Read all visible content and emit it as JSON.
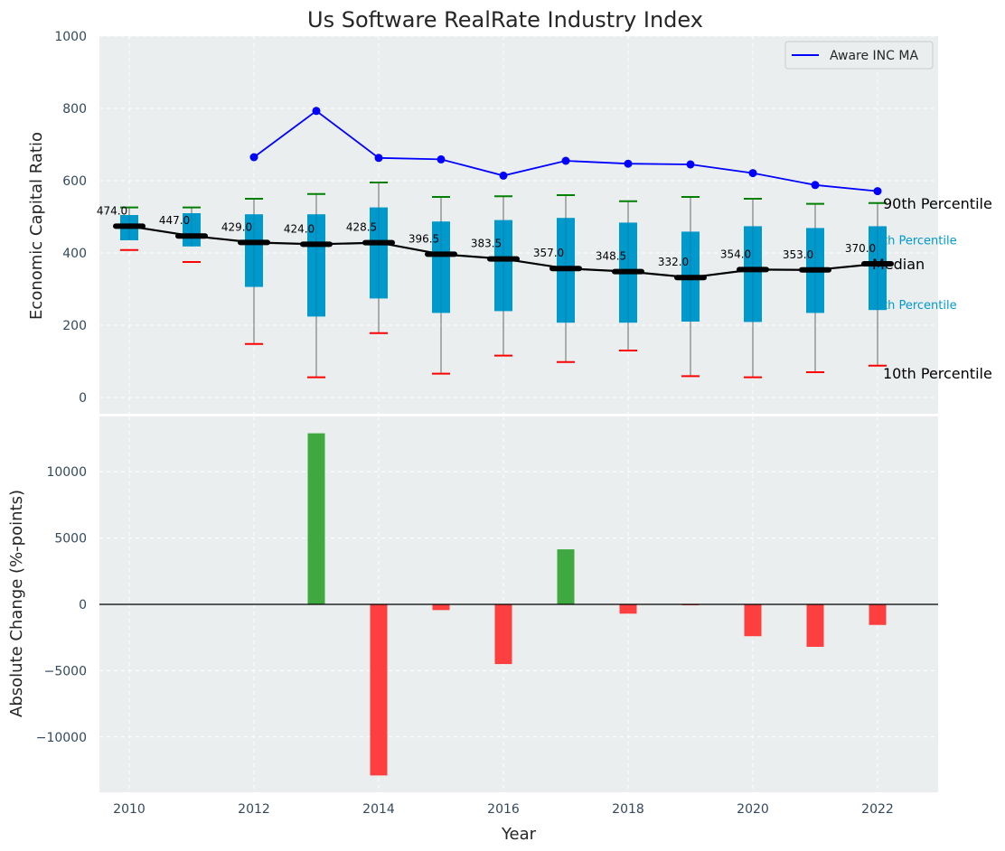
{
  "chart_data": [
    {
      "type": "box",
      "title": "Us Software RealRate Industry Index",
      "xlabel": "",
      "ylabel": "Economic Capital Ratio",
      "ylim": [
        -45,
        1000
      ],
      "yticks": [
        0,
        200,
        400,
        600,
        800,
        1000
      ],
      "grid": true,
      "legend": {
        "position": "top-right",
        "entries": [
          "Aware INC MA"
        ]
      },
      "years": [
        2010,
        2011,
        2012,
        2013,
        2014,
        2015,
        2016,
        2017,
        2018,
        2019,
        2020,
        2021,
        2022
      ],
      "series": [
        {
          "name": "Median",
          "values": [
            474.0,
            447.0,
            429.0,
            424.0,
            428.5,
            396.5,
            383.5,
            357.0,
            348.5,
            332.0,
            354.0,
            353.0,
            370.0
          ]
        },
        {
          "name": "Aware INC MA",
          "x": [
            2012,
            2013,
            2014,
            2015,
            2016,
            2017,
            2018,
            2019,
            2020,
            2021,
            2022
          ],
          "values": [
            665,
            793,
            663,
            659,
            614,
            655,
            647,
            645,
            621,
            588,
            571
          ]
        }
      ],
      "median_labels": [
        "474.0",
        "447.0",
        "429.0",
        "424.0",
        "428.5",
        "396.5",
        "383.5",
        "357.0",
        "348.5",
        "332.0",
        "354.0",
        "353.0",
        "370.0"
      ],
      "boxes": {
        "q75": [
          505,
          510,
          507,
          507,
          526,
          487,
          491,
          497,
          484,
          459,
          474,
          469,
          474
        ],
        "q25": [
          435,
          418,
          306,
          224,
          274,
          234,
          239,
          207,
          207,
          210,
          209,
          234,
          242
        ],
        "p90": [
          526,
          526,
          550,
          563,
          595,
          555,
          557,
          560,
          543,
          555,
          550,
          536,
          538
        ],
        "p10": [
          408,
          375,
          148,
          56,
          178,
          66,
          116,
          98,
          130,
          59,
          56,
          70,
          88
        ],
        "whisker_high": [
          526,
          526,
          550,
          563,
          595,
          555,
          557,
          560,
          543,
          555,
          550,
          536,
          538
        ],
        "whisker_low": [
          435,
          418,
          148,
          56,
          178,
          66,
          116,
          98,
          130,
          59,
          56,
          70,
          88
        ]
      },
      "side_labels": {
        "p90": "90th Percentile",
        "p75": "th Percentile",
        "median": "Median",
        "p25": "th Percentile",
        "p10": "10th Percentile"
      },
      "colors": {
        "box": "#0099cc",
        "median_line": "#000000",
        "company_line": "#0000ff",
        "p90_marker": "#008000",
        "p10_marker": "#ff0000",
        "whisker": "#808080",
        "background": "#eaeeee"
      }
    },
    {
      "type": "bar",
      "title": "",
      "xlabel": "Year",
      "ylabel": "Absolute Change (%-points)",
      "ylim": [
        -14200,
        13300
      ],
      "yticks": [
        -10000,
        -5000,
        0,
        5000,
        10000
      ],
      "xlim": [
        2009.5,
        2023.0
      ],
      "xticks": [
        2010,
        2012,
        2014,
        2016,
        2018,
        2020,
        2022
      ],
      "grid": true,
      "x": [
        2013,
        2014,
        2015,
        2016,
        2017,
        2018,
        2019,
        2020,
        2021,
        2022
      ],
      "values": [
        12900,
        -12900,
        -430,
        -4500,
        4150,
        -700,
        -70,
        -2400,
        -3200,
        -1550
      ],
      "colors": {
        "positive": "#2ca02c",
        "negative": "#ff2b2b"
      }
    }
  ]
}
